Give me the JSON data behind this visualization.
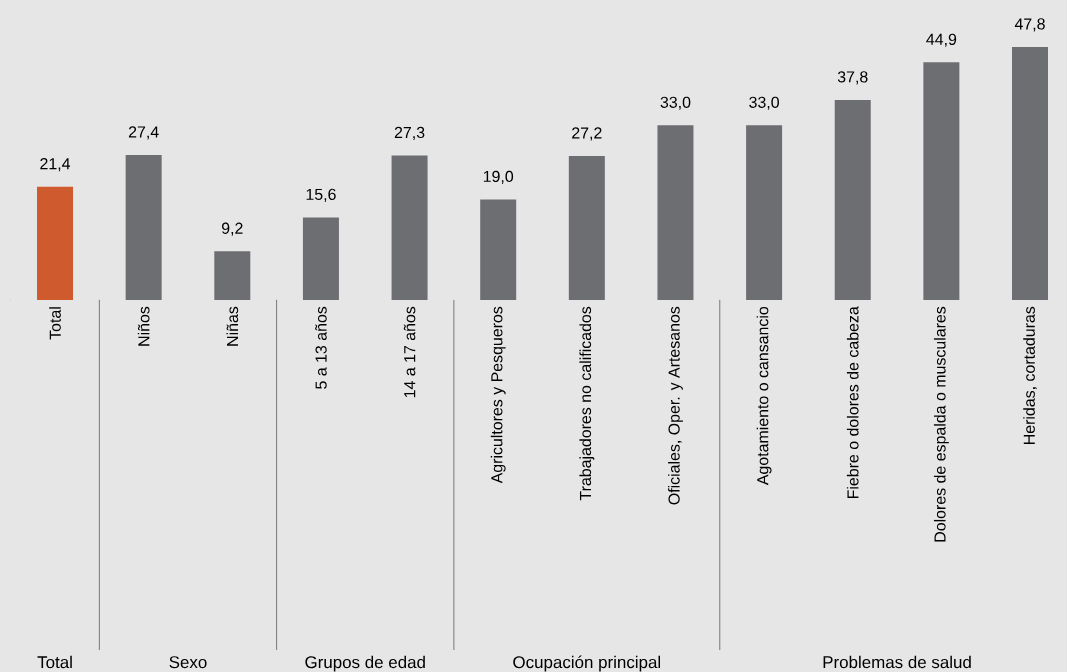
{
  "chart_data": {
    "type": "bar",
    "categories": [
      "Total",
      "Niños",
      "Niñas",
      "5 a 13 años",
      "14 a 17 años",
      "Agricultores y Pesqueros",
      "Trabajadores no calificados",
      "Oficiales, Oper. y Artesanos",
      "Agotamiento o cansancio",
      "Fiebre o dolores de cabeza",
      "Dolores de espalda o musculares",
      "Heridas, cortaduras"
    ],
    "values": [
      21.4,
      27.4,
      9.2,
      15.6,
      27.3,
      19.0,
      27.2,
      33.0,
      33.0,
      37.8,
      44.9,
      47.8
    ],
    "value_labels": [
      "21,4",
      "27,4",
      "9,2",
      "15,6",
      "27,3",
      "19,0",
      "27,2",
      "33,0",
      "33,0",
      "37,8",
      "44,9",
      "47,8"
    ],
    "colors": [
      "#cf5a2e",
      "#6d6e71",
      "#6d6e71",
      "#6d6e71",
      "#6d6e71",
      "#6d6e71",
      "#6d6e71",
      "#6d6e71",
      "#6d6e71",
      "#6d6e71",
      "#6d6e71",
      "#6d6e71"
    ],
    "bands": [
      {
        "axis": "x",
        "from": "Total",
        "to": "Total",
        "label": "Total",
        "color": "#e6e6e7"
      },
      {
        "axis": "x",
        "from": "Niños",
        "to": "Niñas",
        "label": "Sexo",
        "color": "#e6e6e7"
      },
      {
        "axis": "x",
        "from": "5 a 13 años",
        "to": "14 a 17 años",
        "label": "Grupos de edad",
        "color": "#e6e6e7"
      },
      {
        "axis": "x",
        "from": "Agricultores y Pesqueros",
        "to": "Oficiales, Oper. y Artesanos",
        "label": "Ocupación principal",
        "color": "#e6e6e7"
      },
      {
        "axis": "x",
        "from": "Agotamiento o cansancio",
        "to": "Heridas, cortaduras",
        "label": "Problemas de salud",
        "color": "#e6e6e7"
      }
    ],
    "orientation": "vertical"
  }
}
